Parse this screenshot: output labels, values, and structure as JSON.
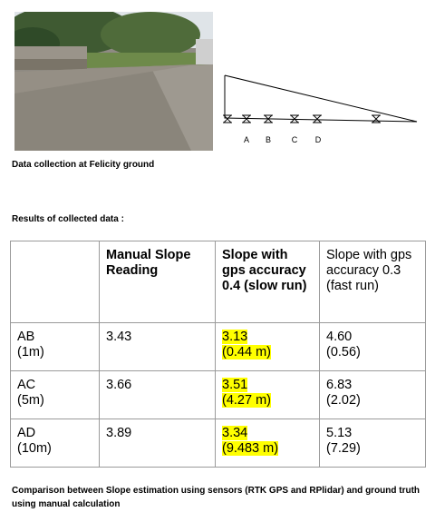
{
  "figure": {
    "caption": "Data collection at Felicity ground",
    "diagram_labels": [
      "A",
      "B",
      "C",
      "D"
    ]
  },
  "results": {
    "heading": "Results of collected data :",
    "columns": [
      "",
      "Manual Slope Reading",
      "Slope with gps accuracy 0.4 (slow run)",
      "Slope with gps accuracy 0.3 (fast run)"
    ],
    "rows": [
      {
        "segment": "AB",
        "distance": "(1m)",
        "manual": "3.43",
        "slow_slope": "3.13",
        "slow_err": "(0.44 m)",
        "fast_slope": "4.60",
        "fast_err": "(0.56)"
      },
      {
        "segment": "AC",
        "distance": "(5m)",
        "manual": "3.66",
        "slow_slope": "3.51",
        "slow_err": "(4.27 m)",
        "fast_slope": "6.83",
        "fast_err": "(2.02)"
      },
      {
        "segment": "AD",
        "distance": "(10m)",
        "manual": "3.89",
        "slow_slope": "3.34",
        "slow_err": "(9.483 m)",
        "fast_slope": "5.13",
        "fast_err": "(7.29)"
      }
    ],
    "highlight_color": "#ffff00"
  },
  "comparison_caption": "Comparison between Slope estimation using sensors (RTK GPS and RPlidar) and ground truth using manual calculation"
}
